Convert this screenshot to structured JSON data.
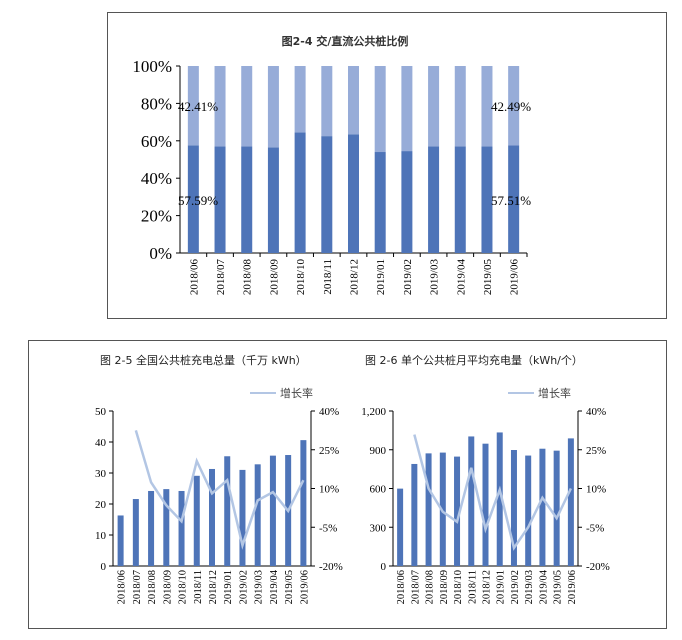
{
  "colors": {
    "dark_bar": "#4e74b8",
    "light_bar": "#97acd8",
    "line": "#b3c6e4",
    "frame": "#555555"
  },
  "chart_data": [
    {
      "type": "bar",
      "stacked": true,
      "title": "图2-4 交/直流公共桩比例",
      "categories": [
        "2018/06",
        "2018/07",
        "2018/08",
        "2018/09",
        "2018/10",
        "2018/11",
        "2018/12",
        "2019/01",
        "2019/02",
        "2019/03",
        "2019/04",
        "2019/05",
        "2019/06"
      ],
      "series": [
        {
          "values": [
            57.59,
            57,
            57,
            56.5,
            64.5,
            62.5,
            63.5,
            54,
            54.5,
            57,
            57,
            57,
            57.51
          ]
        },
        {
          "values": [
            42.41,
            43,
            43,
            43.5,
            35.5,
            37.5,
            36.5,
            46,
            45.5,
            43,
            43,
            43,
            42.49
          ]
        }
      ],
      "ylim": [
        0,
        100
      ],
      "yticks": [
        "0%",
        "20%",
        "40%",
        "60%",
        "80%",
        "100%"
      ],
      "annotations": [
        "57.59%",
        "42.41%",
        "57.51%",
        "42.49%"
      ]
    },
    {
      "type": "bar+line",
      "title": "图 2-5  全国公共桩充电总量（千万 kWh）",
      "categories": [
        "2018/06",
        "2018/07",
        "2018/08",
        "2018/09",
        "2018/10",
        "2018/11",
        "2018/12",
        "2019/01",
        "2019/02",
        "2019/03",
        "2019/04",
        "2019/05",
        "2019/06"
      ],
      "bars": [
        16.3,
        21.6,
        24.2,
        24.8,
        24.2,
        29.1,
        31.3,
        35.4,
        31,
        32.8,
        35.6,
        35.8,
        40.6
      ],
      "line": {
        "name": "增长率",
        "values": [
          null,
          32.5,
          12.4,
          3.5,
          -2.7,
          20.6,
          8.1,
          13.2,
          -12,
          5.4,
          8.6,
          1.3,
          13.2
        ]
      },
      "ylim": [
        0,
        50
      ],
      "yticks": [
        "0",
        "10",
        "20",
        "30",
        "40",
        "50"
      ],
      "y2lim": [
        -20,
        40
      ],
      "y2ticks": [
        "-20%",
        "-5%",
        "10%",
        "25%",
        "40%"
      ],
      "legend": "top-right"
    },
    {
      "type": "bar+line",
      "title": "图 2-6  单个公共桩月平均充电量（kWh/个）",
      "categories": [
        "2018/06",
        "2018/07",
        "2018/08",
        "2018/09",
        "2018/10",
        "2018/11",
        "2018/12",
        "2019/01",
        "2019/02",
        "2019/03",
        "2019/04",
        "2019/05",
        "2019/06"
      ],
      "bars": [
        599,
        790,
        872,
        878,
        847,
        1003,
        947,
        1034,
        898,
        855,
        908,
        893,
        988
      ],
      "line": {
        "name": "增长率",
        "values": [
          null,
          30.9,
          10,
          1,
          -2.9,
          18,
          -5.7,
          9.5,
          -13,
          -5,
          6.4,
          -1.5,
          10
        ]
      },
      "ylim": [
        0,
        1200
      ],
      "yticks": [
        "0",
        "300",
        "600",
        "900",
        "1,200"
      ],
      "y2lim": [
        -20,
        40
      ],
      "y2ticks": [
        "-20%",
        "-5%",
        "10%",
        "25%",
        "40%"
      ],
      "legend": "top-right"
    }
  ]
}
